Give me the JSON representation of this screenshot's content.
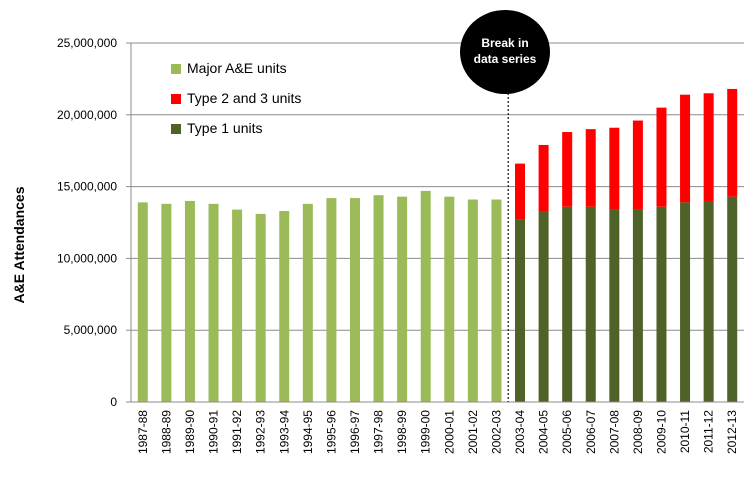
{
  "chart_data": {
    "type": "bar",
    "ylabel": "A&E Attendances",
    "ylim": [
      0,
      25000000
    ],
    "yticks": [
      0,
      5000000,
      10000000,
      15000000,
      20000000,
      25000000
    ],
    "ytick_labels": [
      "0",
      "5,000,000",
      "10,000,000",
      "15,000,000",
      "20,000,000",
      "25,000,000"
    ],
    "grid": true,
    "legend_position": "top-left",
    "categories": [
      "1987-88",
      "1988-89",
      "1989-90",
      "1990-91",
      "1991-92",
      "1992-93",
      "1993-94",
      "1994-95",
      "1995-96",
      "1996-97",
      "1997-98",
      "1998-99",
      "1999-00",
      "2000-01",
      "2001-02",
      "2002-03",
      "2003-04",
      "2004-05",
      "2005-06",
      "2006-07",
      "2007-08",
      "2008-09",
      "2009-10",
      "2010-11",
      "2011-12",
      "2012-13"
    ],
    "series": [
      {
        "name": "Major A&E units",
        "color": "#9bbb59",
        "values": [
          13900000,
          13800000,
          14000000,
          13800000,
          13400000,
          13100000,
          13300000,
          13800000,
          14200000,
          14200000,
          14400000,
          14300000,
          14700000,
          14300000,
          14100000,
          14100000,
          null,
          null,
          null,
          null,
          null,
          null,
          null,
          null,
          null,
          null
        ]
      },
      {
        "name": "Type 1 units",
        "color": "#4f6228",
        "values": [
          null,
          null,
          null,
          null,
          null,
          null,
          null,
          null,
          null,
          null,
          null,
          null,
          null,
          null,
          null,
          null,
          12700000,
          13300000,
          13600000,
          13600000,
          13400000,
          13400000,
          13600000,
          13900000,
          14000000,
          14300000
        ]
      },
      {
        "name": "Type 2 and 3 units",
        "color": "#ff0000",
        "values": [
          null,
          null,
          null,
          null,
          null,
          null,
          null,
          null,
          null,
          null,
          null,
          null,
          null,
          null,
          null,
          null,
          3900000,
          4600000,
          5200000,
          5400000,
          5700000,
          6200000,
          6900000,
          7500000,
          7500000,
          7500000
        ]
      }
    ],
    "legend_order": [
      "Major A&E units",
      "Type 2 and 3 units",
      "Type 1 units"
    ],
    "annotation": {
      "label_lines": [
        "Break in",
        "data series"
      ],
      "after_category": "2002-03"
    }
  }
}
